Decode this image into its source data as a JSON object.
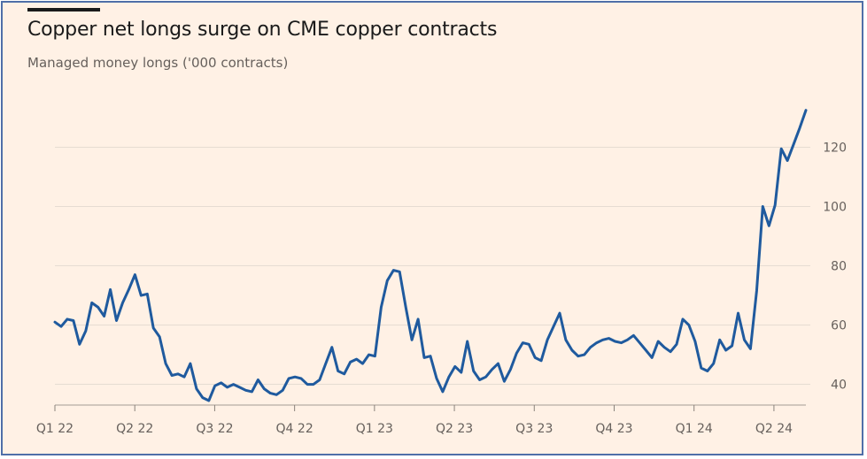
{
  "title": "Copper net longs surge on CME copper contracts",
  "subtitle": "Managed money longs ('000 contracts)",
  "colors": {
    "background": "#fff1e5",
    "line": "#1f5a9e",
    "grid": "#e6dcd2",
    "text": "#66605c",
    "border": "#4f6fa8"
  },
  "chart_data": {
    "type": "line",
    "title": "Copper net longs surge on CME copper contracts",
    "subtitle": "Managed money longs ('000 contracts)",
    "xlabel": "",
    "ylabel": "",
    "ylim": [
      33,
      133
    ],
    "yticks": [
      40,
      60,
      80,
      100,
      120
    ],
    "ytick_labels": [
      "40",
      "60",
      "80",
      "100",
      "120"
    ],
    "xticks": [
      "Q1 22",
      "Q2 22",
      "Q3 22",
      "Q4 22",
      "Q1 23",
      "Q2 23",
      "Q3 23",
      "Q4 23",
      "Q1 24",
      "Q2 24"
    ],
    "grid": true,
    "series": [
      {
        "values": [
          61,
          59.5,
          62,
          61.5,
          53.5,
          58,
          67.5,
          66,
          63,
          72,
          61.5,
          67.5,
          72,
          77,
          70,
          70.5,
          59,
          56,
          47,
          43,
          43.5,
          42.5,
          47,
          38.5,
          35.5,
          34.5,
          39.5,
          40.5,
          39,
          40,
          39,
          38,
          37.5,
          41.5,
          38.5,
          37,
          36.5,
          38,
          42,
          42.5,
          42,
          40,
          40,
          41.5,
          47,
          52.5,
          44.5,
          43.5,
          47.5,
          48.5,
          47,
          50,
          49.5,
          66,
          75,
          78.5,
          78,
          66,
          55,
          62,
          49,
          49.5,
          42,
          37.5,
          42.5,
          46,
          44,
          54.5,
          44.5,
          41.5,
          42.5,
          45,
          47,
          41,
          45,
          50.5,
          54,
          53.5,
          49,
          48,
          55,
          59.5,
          64,
          55,
          51.5,
          49.5,
          50,
          52.5,
          54,
          55,
          55.5,
          54.5,
          54,
          55,
          56.5,
          54,
          51.5,
          49,
          54.5,
          52.5,
          51,
          53.5,
          62,
          60,
          54.5,
          45.5,
          44.5,
          47,
          55,
          51.5,
          53,
          64,
          55,
          52,
          71.5,
          100,
          93.5,
          100.5,
          119.5,
          115.5,
          121,
          126.5,
          132.5
        ]
      }
    ]
  }
}
